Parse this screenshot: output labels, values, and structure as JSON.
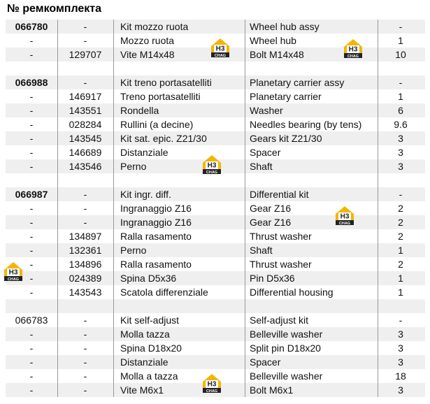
{
  "header": {
    "title": "№ ремкомплекта"
  },
  "badge": {
    "code": "H3",
    "label": "CHAG"
  },
  "table": {
    "rows": [
      [
        "066780",
        "-",
        "Kit mozzo ruota",
        "Wheel hub assy",
        "-"
      ],
      [
        "-",
        "-",
        "Mozzo ruota",
        "Wheel hub",
        "1"
      ],
      [
        "-",
        "129707",
        "Vite M14x48",
        "Bolt M14x48",
        "10"
      ],
      [],
      [
        "066988",
        "-",
        "Kit treno portasatelliti",
        "Planetary carrier assy",
        "-"
      ],
      [
        "-",
        "146917",
        "Treno portasatelliti",
        "Planetary carrier",
        "1"
      ],
      [
        "-",
        "143551",
        "Rondella",
        "Washer",
        "6"
      ],
      [
        "-",
        "028284",
        "Rullini (a decine)",
        "Needles bearing (by tens)",
        "9.6"
      ],
      [
        "-",
        "143545",
        "Kit sat. epic. Z21/30",
        "Gears kit Z21/30",
        "3"
      ],
      [
        "-",
        "146689",
        "Distanziale",
        "Spacer",
        "3"
      ],
      [
        "-",
        "143546",
        "Perno",
        "Shaft",
        "3"
      ],
      [],
      [
        "066987",
        "-",
        "Kit ingr. diff.",
        "Differential kit",
        "-"
      ],
      [
        "-",
        "-",
        "Ingranaggio Z16",
        "Gear Z16",
        "2"
      ],
      [
        "-",
        "-",
        "Ingranaggio Z16",
        "Gear Z16",
        "2"
      ],
      [
        "-",
        "134897",
        "Ralla rasamento",
        "Thrust washer",
        "2"
      ],
      [
        "-",
        "132361",
        "Perno",
        "Shaft",
        "1"
      ],
      [
        "-",
        "134896",
        "Ralla rasamento",
        "Thrust washer",
        "2"
      ],
      [
        "-",
        "024389",
        "Spina D5x36",
        "Pin D5x36",
        "1"
      ],
      [
        "-",
        "143543",
        "Scatola differenziale",
        "Differential housing",
        "1"
      ],
      [],
      [
        "066783",
        "-",
        "Kit self-adjust",
        "Self-adjust kit",
        "-"
      ],
      [
        "-",
        "-",
        "Molla tazza",
        "Belleville washer",
        "3"
      ],
      [
        "-",
        "-",
        "Spina D18x20",
        "Split pin D18x20",
        "3"
      ],
      [
        "-",
        "-",
        "Distanziale",
        "Spacer",
        "3"
      ],
      [
        "-",
        "-",
        "Molla a tazza",
        "Belleville washer",
        "18"
      ],
      [
        "-",
        "-",
        "Vite M6x1",
        "Bolt M6x1",
        "3"
      ]
    ]
  }
}
